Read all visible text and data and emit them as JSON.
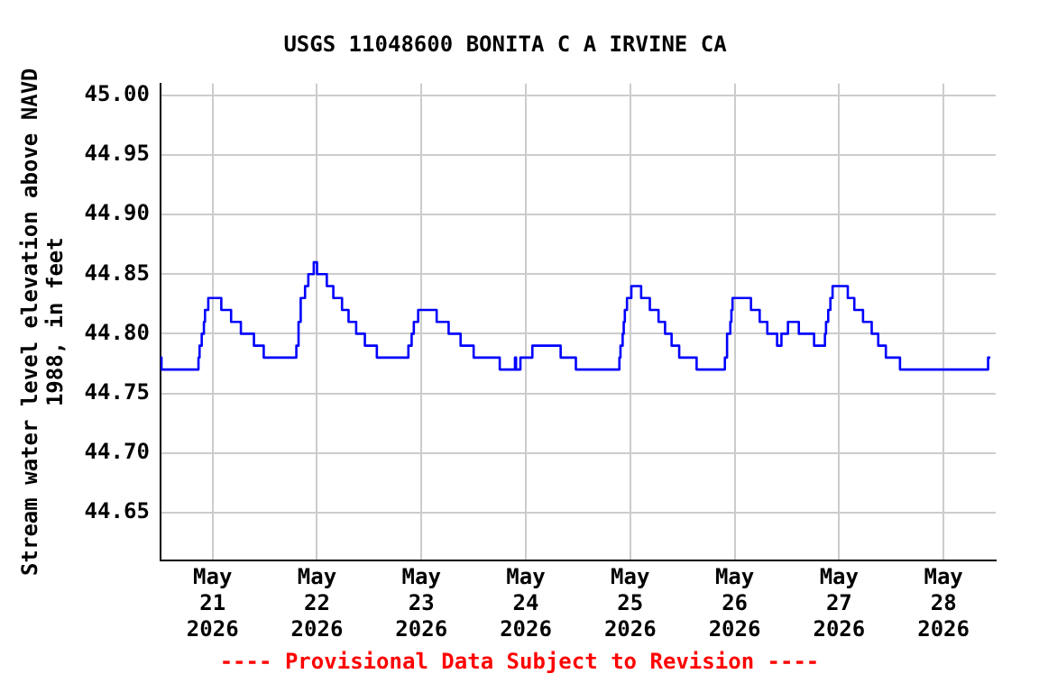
{
  "chart_data": {
    "type": "step",
    "title": "USGS 11048600 BONITA C A IRVINE CA",
    "ylabel": "Stream water level elevation above NAVD 1988, in feet",
    "annotations": [
      "---- Provisional Data Subject to Revision ----"
    ],
    "xlim": [
      "2026-05-20T12:00",
      "2026-05-28T12:00"
    ],
    "xticks": [
      {
        "value": "2026-05-21",
        "label": "May\n21\n2026"
      },
      {
        "value": "2026-05-22",
        "label": "May\n22\n2026"
      },
      {
        "value": "2026-05-23",
        "label": "May\n23\n2026"
      },
      {
        "value": "2026-05-24",
        "label": "May\n24\n2026"
      },
      {
        "value": "2026-05-25",
        "label": "May\n25\n2026"
      },
      {
        "value": "2026-05-26",
        "label": "May\n26\n2026"
      },
      {
        "value": "2026-05-27",
        "label": "May\n27\n2026"
      },
      {
        "value": "2026-05-28",
        "label": "May\n28\n2026"
      }
    ],
    "ylim": [
      44.61,
      45.01
    ],
    "yticks": [
      {
        "value": 44.65,
        "label": "44.65"
      },
      {
        "value": 44.7,
        "label": "44.70"
      },
      {
        "value": 44.75,
        "label": "44.75"
      },
      {
        "value": 44.8,
        "label": "44.80"
      },
      {
        "value": 44.85,
        "label": "44.85"
      },
      {
        "value": 44.9,
        "label": "44.90"
      },
      {
        "value": 44.95,
        "label": "44.95"
      },
      {
        "value": 45.0,
        "label": "45.00"
      }
    ],
    "grid": true,
    "legend": false,
    "marker": "none",
    "line_style": "solid",
    "series": [
      {
        "color": "#0000ff",
        "x": [
          "2026-05-20T12:00",
          "2026-05-20T12:15",
          "2026-05-20T20:45",
          "2026-05-20T21:00",
          "2026-05-20T21:30",
          "2026-05-20T22:00",
          "2026-05-20T22:15",
          "2026-05-20T23:00",
          "2026-05-21T02:00",
          "2026-05-21T04:15",
          "2026-05-21T06:30",
          "2026-05-21T09:30",
          "2026-05-21T11:45",
          "2026-05-21T19:15",
          "2026-05-21T19:45",
          "2026-05-21T20:15",
          "2026-05-21T21:15",
          "2026-05-21T22:00",
          "2026-05-21T23:15",
          "2026-05-22T00:00",
          "2026-05-22T02:15",
          "2026-05-22T03:45",
          "2026-05-22T05:45",
          "2026-05-22T07:15",
          "2026-05-22T09:00",
          "2026-05-22T11:00",
          "2026-05-22T13:45",
          "2026-05-22T21:00",
          "2026-05-22T21:45",
          "2026-05-22T22:15",
          "2026-05-22T23:15",
          "2026-05-23T03:30",
          "2026-05-23T06:15",
          "2026-05-23T09:00",
          "2026-05-23T12:00",
          "2026-05-23T18:00",
          "2026-05-23T21:30",
          "2026-05-23T21:45",
          "2026-05-23T22:45",
          "2026-05-24T01:30",
          "2026-05-24T08:00",
          "2026-05-24T11:30",
          "2026-05-24T21:30",
          "2026-05-24T21:45",
          "2026-05-24T22:15",
          "2026-05-24T22:30",
          "2026-05-24T22:45",
          "2026-05-24T23:15",
          "2026-05-25T00:15",
          "2026-05-25T02:30",
          "2026-05-25T04:30",
          "2026-05-25T06:30",
          "2026-05-25T08:00",
          "2026-05-25T09:30",
          "2026-05-25T11:15",
          "2026-05-25T15:15",
          "2026-05-25T21:45",
          "2026-05-25T22:15",
          "2026-05-25T23:00",
          "2026-05-25T23:15",
          "2026-05-25T23:30",
          "2026-05-26T03:45",
          "2026-05-26T05:45",
          "2026-05-26T07:30",
          "2026-05-26T09:45",
          "2026-05-26T10:45",
          "2026-05-26T12:15",
          "2026-05-26T14:45",
          "2026-05-26T18:15",
          "2026-05-26T20:45",
          "2026-05-26T21:00",
          "2026-05-26T21:30",
          "2026-05-26T22:00",
          "2026-05-26T22:30",
          "2026-05-27T02:00",
          "2026-05-27T03:30",
          "2026-05-27T05:30",
          "2026-05-27T07:30",
          "2026-05-27T09:00",
          "2026-05-27T10:45",
          "2026-05-27T14:00",
          "2026-05-28T10:15",
          "2026-05-28T10:45"
        ],
        "values": [
          44.78,
          44.77,
          44.78,
          44.79,
          44.8,
          44.81,
          44.82,
          44.83,
          44.82,
          44.81,
          44.8,
          44.79,
          44.78,
          44.79,
          44.81,
          44.83,
          44.84,
          44.85,
          44.86,
          44.85,
          44.84,
          44.83,
          44.82,
          44.81,
          44.8,
          44.79,
          44.78,
          44.79,
          44.8,
          44.81,
          44.82,
          44.81,
          44.8,
          44.79,
          44.78,
          44.77,
          44.78,
          44.77,
          44.78,
          44.79,
          44.78,
          44.77,
          44.78,
          44.79,
          44.8,
          44.81,
          44.82,
          44.83,
          44.84,
          44.83,
          44.82,
          44.81,
          44.8,
          44.79,
          44.78,
          44.77,
          44.78,
          44.8,
          44.81,
          44.82,
          44.83,
          44.82,
          44.81,
          44.8,
          44.79,
          44.8,
          44.81,
          44.8,
          44.79,
          44.8,
          44.81,
          44.82,
          44.83,
          44.84,
          44.83,
          44.82,
          44.81,
          44.8,
          44.79,
          44.78,
          44.77,
          44.78,
          44.78
        ]
      }
    ]
  }
}
